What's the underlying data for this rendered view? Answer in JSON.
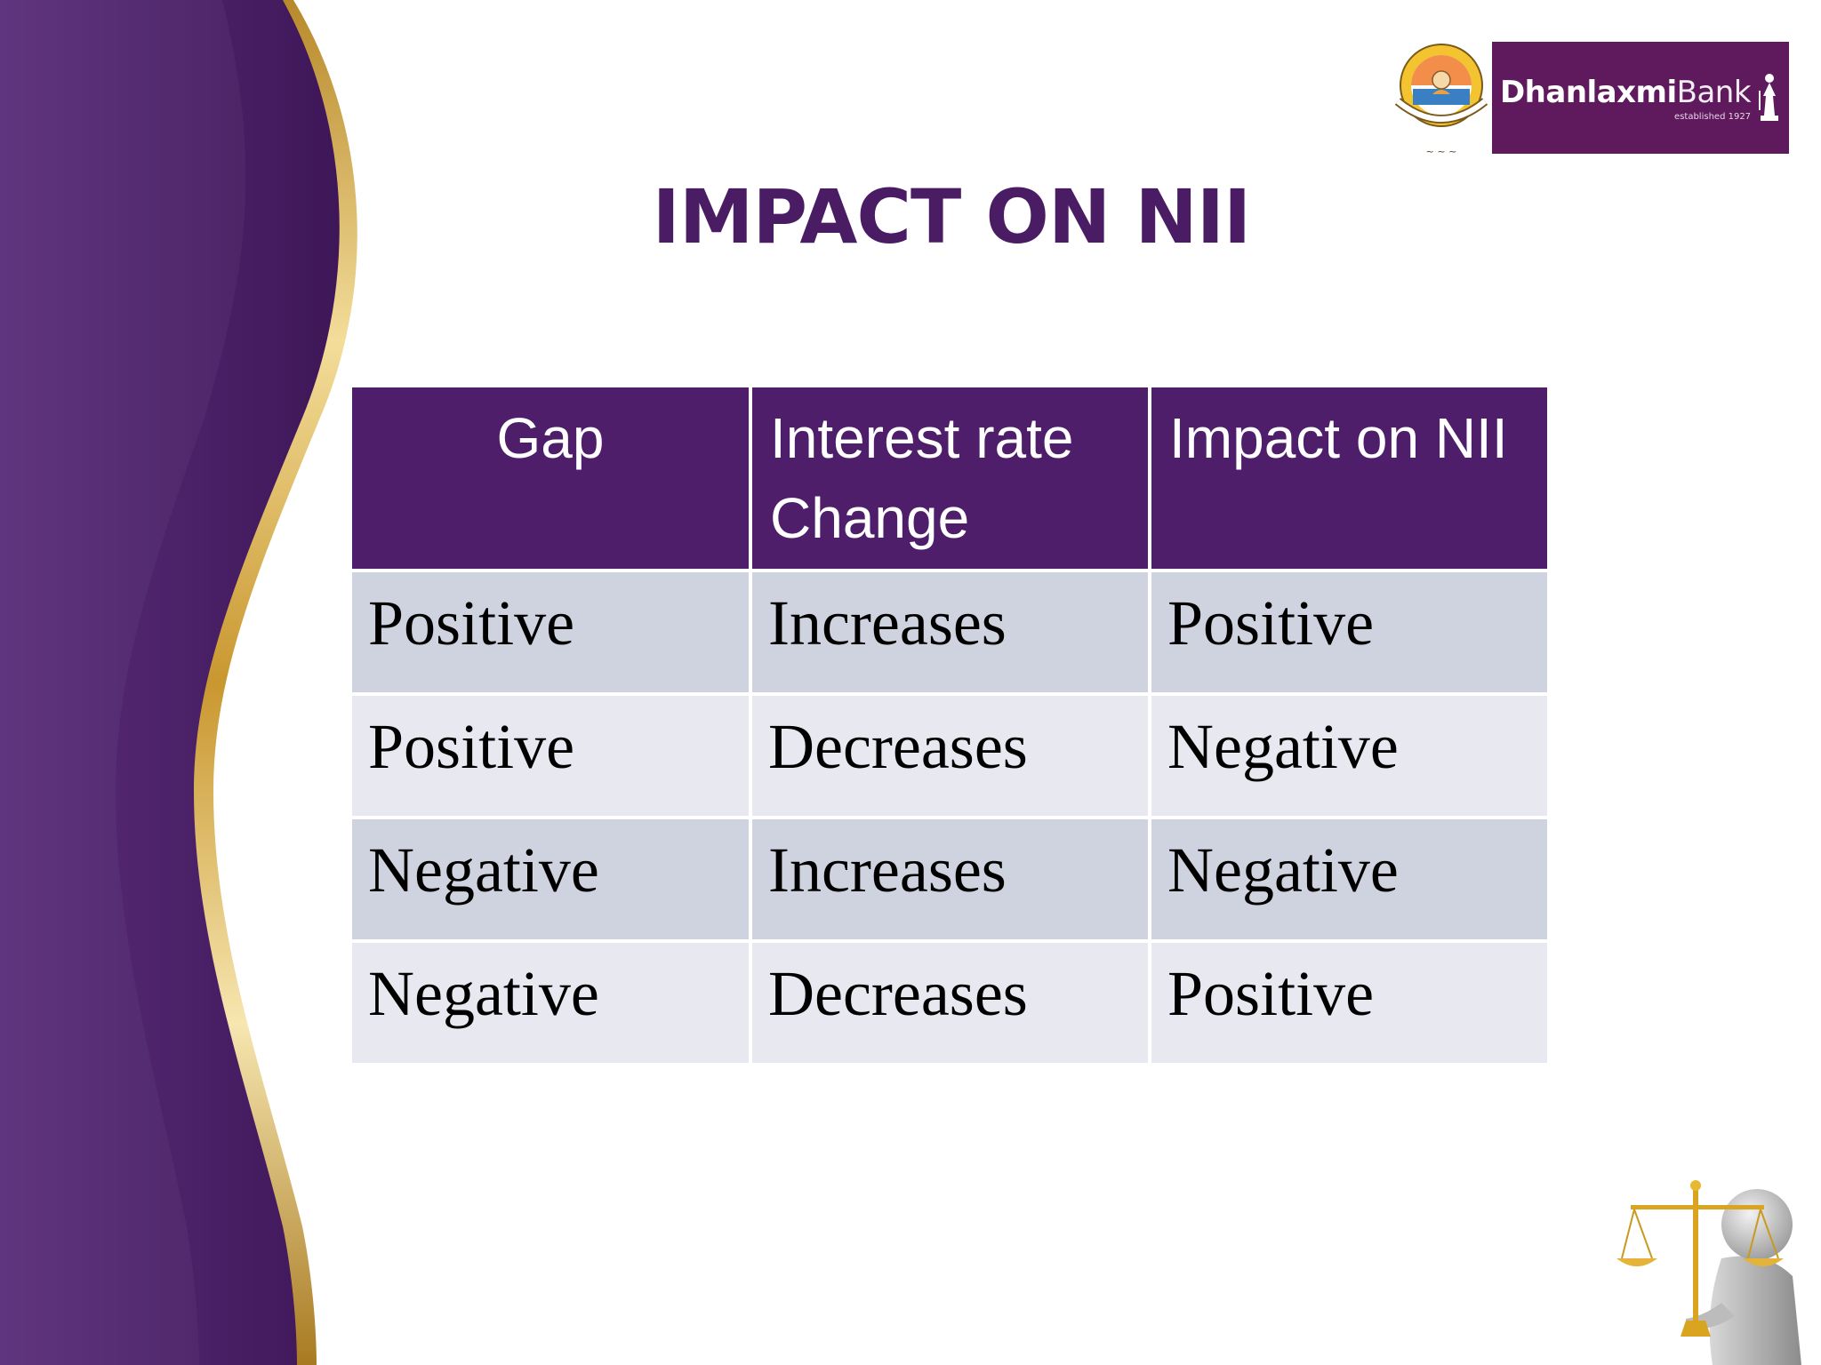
{
  "slide": {
    "title": "IMPACT ON NII",
    "colors": {
      "accent_purple": "#4e1e6b",
      "title_purple": "#4a1c64",
      "gold": "#c9a24a",
      "row_odd": "#cfd2df",
      "row_even": "#e7e8f0"
    }
  },
  "logos": {
    "emblem_icon": "university-emblem-icon",
    "bank_name_bold": "Dhanlaxmi",
    "bank_name_light": "Bank",
    "bank_tagline": "established 1927",
    "bank_icon": "goddess-figure-icon"
  },
  "table": {
    "headers": [
      "Gap",
      "Interest rate Change",
      "Impact on NII"
    ],
    "rows": [
      [
        "Positive",
        "Increases",
        "Positive"
      ],
      [
        "Positive",
        "Decreases",
        "Negative"
      ],
      [
        "Negative",
        "Increases",
        "Negative"
      ],
      [
        "Negative",
        "Decreases",
        "Positive"
      ]
    ]
  },
  "decor": {
    "scale_figure_icon": "person-holding-scales-icon"
  }
}
